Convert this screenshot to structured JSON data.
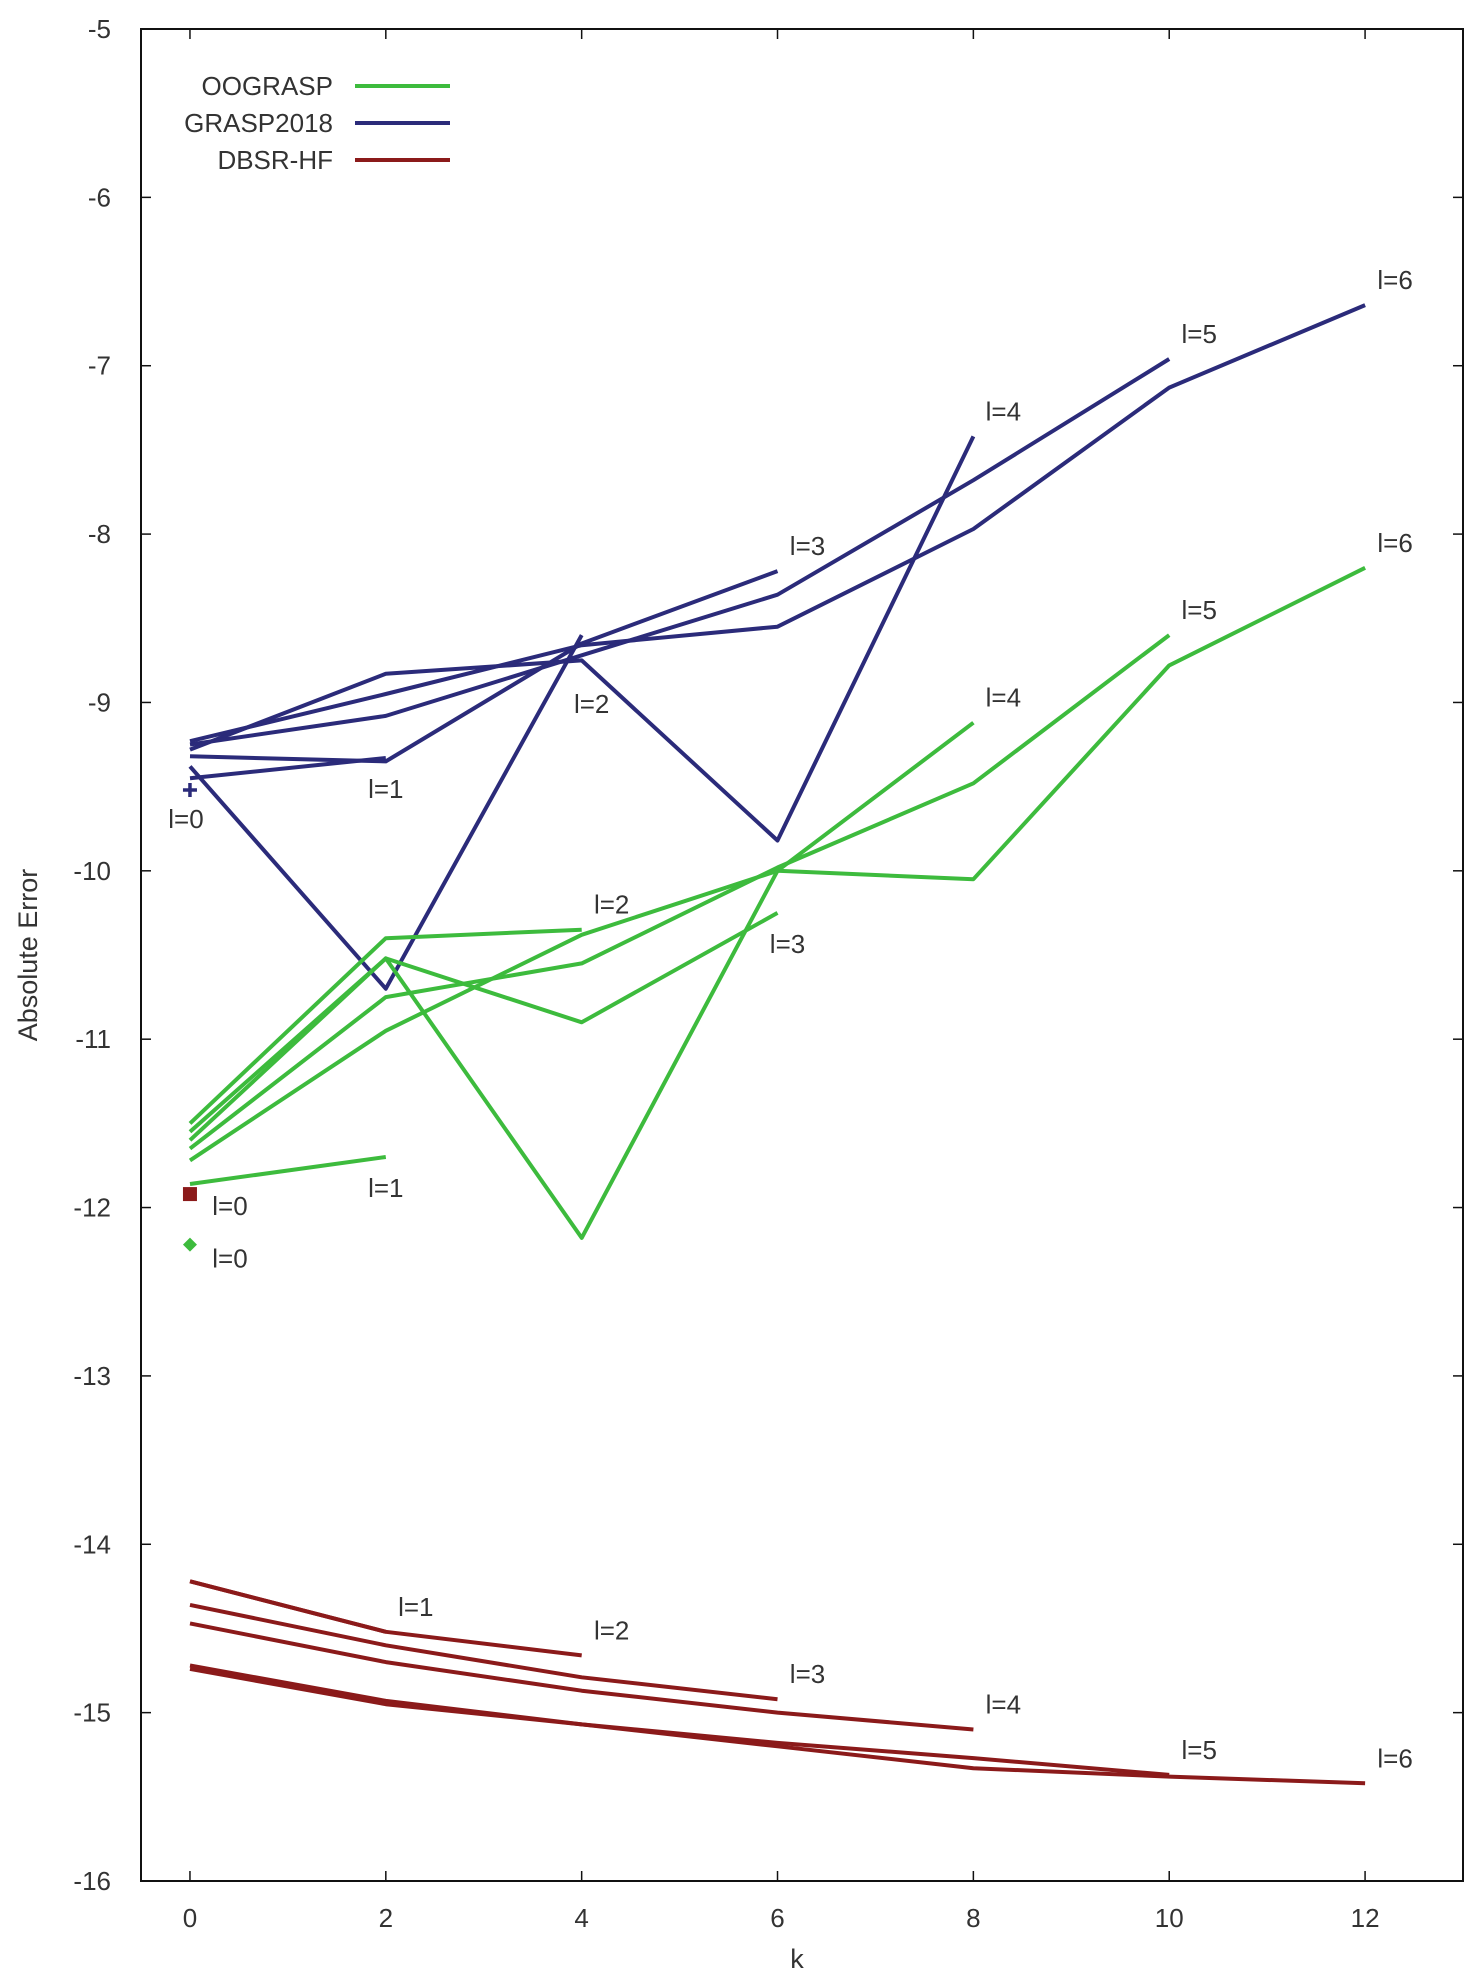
{
  "chart_data": {
    "type": "line",
    "title": "",
    "xlabel": "k",
    "ylabel": "Absolute Error",
    "xlim": [
      -0.5,
      13
    ],
    "ylim": [
      -16,
      -5
    ],
    "xticks": [
      0,
      2,
      4,
      6,
      8,
      10,
      12
    ],
    "yticks": [
      -16,
      -15,
      -14,
      -13,
      -12,
      -11,
      -10,
      -9,
      -8,
      -7,
      -6,
      -5
    ],
    "grid": false,
    "legend_position": "top-left",
    "legend": [
      {
        "name": "OOGRASP",
        "color": "#3dbb3d"
      },
      {
        "name": "GRASP2018",
        "color": "#2b2b7a"
      },
      {
        "name": "DBSR-HF",
        "color": "#8b1a1a"
      }
    ],
    "series": [
      {
        "group": "GRASP2018",
        "l": 0,
        "label": "l=0",
        "marker": "plus",
        "points": [
          [
            0,
            -9.52
          ]
        ]
      },
      {
        "group": "GRASP2018",
        "l": 1,
        "label": "l=1",
        "points": [
          [
            0,
            -9.45
          ],
          [
            2,
            -9.33
          ]
        ]
      },
      {
        "group": "GRASP2018",
        "l": 2,
        "label": "l=2",
        "points": [
          [
            0,
            -9.38
          ],
          [
            2,
            -10.7
          ],
          [
            4,
            -8.6
          ]
        ]
      },
      {
        "group": "GRASP2018",
        "l": 3,
        "label": "l=3",
        "points": [
          [
            0,
            -9.32
          ],
          [
            2,
            -9.35
          ],
          [
            4,
            -8.65
          ],
          [
            6,
            -8.22
          ]
        ]
      },
      {
        "group": "GRASP2018",
        "l": 4,
        "label": "l=4",
        "points": [
          [
            0,
            -9.28
          ],
          [
            2,
            -8.83
          ],
          [
            4,
            -8.75
          ],
          [
            6,
            -9.82
          ],
          [
            8,
            -7.42
          ]
        ]
      },
      {
        "group": "GRASP2018",
        "l": 5,
        "label": "l=5",
        "points": [
          [
            0,
            -9.25
          ],
          [
            2,
            -9.08
          ],
          [
            4,
            -8.72
          ],
          [
            6,
            -8.36
          ],
          [
            8,
            -7.68
          ],
          [
            10,
            -6.96
          ]
        ]
      },
      {
        "group": "GRASP2018",
        "l": 6,
        "label": "l=6",
        "points": [
          [
            0,
            -9.23
          ],
          [
            2,
            -8.95
          ],
          [
            4,
            -8.66
          ],
          [
            6,
            -8.55
          ],
          [
            8,
            -7.97
          ],
          [
            10,
            -7.13
          ],
          [
            12,
            -6.64
          ]
        ]
      },
      {
        "group": "OOGRASP",
        "l": 0,
        "label": "l=0",
        "marker": "diamond",
        "points": [
          [
            0,
            -12.22
          ]
        ]
      },
      {
        "group": "OOGRASP",
        "l": 1,
        "label": "l=1",
        "points": [
          [
            0,
            -11.86
          ],
          [
            2,
            -11.7
          ]
        ]
      },
      {
        "group": "OOGRASP",
        "l": 2,
        "label": "l=2",
        "points": [
          [
            0,
            -11.5
          ],
          [
            2,
            -10.4
          ],
          [
            4,
            -10.35
          ]
        ]
      },
      {
        "group": "OOGRASP",
        "l": 3,
        "label": "l=3",
        "points": [
          [
            0,
            -11.55
          ],
          [
            2,
            -10.52
          ],
          [
            4,
            -10.9
          ],
          [
            6,
            -10.25
          ]
        ]
      },
      {
        "group": "OOGRASP",
        "l": 4,
        "label": "l=4",
        "points": [
          [
            0,
            -11.6
          ],
          [
            2,
            -10.52
          ],
          [
            4,
            -12.18
          ],
          [
            6,
            -10.0
          ],
          [
            8,
            -9.12
          ]
        ]
      },
      {
        "group": "OOGRASP",
        "l": 5,
        "label": "l=5",
        "points": [
          [
            0,
            -11.65
          ],
          [
            2,
            -10.75
          ],
          [
            4,
            -10.55
          ],
          [
            6,
            -9.98
          ],
          [
            8,
            -9.48
          ],
          [
            10,
            -8.6
          ]
        ]
      },
      {
        "group": "OOGRASP",
        "l": 6,
        "label": "l=6",
        "points": [
          [
            0,
            -11.72
          ],
          [
            2,
            -10.95
          ],
          [
            4,
            -10.38
          ],
          [
            6,
            -10.0
          ],
          [
            8,
            -10.05
          ],
          [
            10,
            -8.78
          ],
          [
            12,
            -8.2
          ]
        ]
      },
      {
        "group": "DBSR-HF",
        "l": 0,
        "label": "l=0",
        "marker": "square",
        "points": [
          [
            0,
            -11.92
          ]
        ]
      },
      {
        "group": "DBSR-HF",
        "l": 1,
        "label": "l=1",
        "points": [
          [
            0,
            -14.22
          ],
          [
            2,
            -14.52
          ]
        ]
      },
      {
        "group": "DBSR-HF",
        "l": 2,
        "label": "l=2",
        "points": [
          [
            0,
            -14.22
          ],
          [
            2,
            -14.52
          ],
          [
            4,
            -14.66
          ]
        ]
      },
      {
        "group": "DBSR-HF",
        "l": 3,
        "label": "l=3",
        "points": [
          [
            0,
            -14.36
          ],
          [
            2,
            -14.6
          ],
          [
            4,
            -14.79
          ],
          [
            6,
            -14.92
          ]
        ]
      },
      {
        "group": "DBSR-HF",
        "l": 4,
        "label": "l=4",
        "points": [
          [
            0,
            -14.47
          ],
          [
            2,
            -14.7
          ],
          [
            4,
            -14.87
          ],
          [
            6,
            -15.0
          ],
          [
            8,
            -15.1
          ]
        ]
      },
      {
        "group": "DBSR-HF",
        "l": 5,
        "label": "l=5",
        "points": [
          [
            0,
            -14.72
          ],
          [
            2,
            -14.93
          ],
          [
            4,
            -15.07
          ],
          [
            6,
            -15.18
          ],
          [
            8,
            -15.27
          ],
          [
            10,
            -15.37
          ]
        ]
      },
      {
        "group": "DBSR-HF",
        "l": 6,
        "label": "l=6",
        "points": [
          [
            0,
            -14.74
          ],
          [
            2,
            -14.95
          ],
          [
            4,
            -15.07
          ],
          [
            6,
            -15.2
          ],
          [
            8,
            -15.33
          ],
          [
            10,
            -15.38
          ],
          [
            12,
            -15.42
          ]
        ]
      }
    ]
  }
}
